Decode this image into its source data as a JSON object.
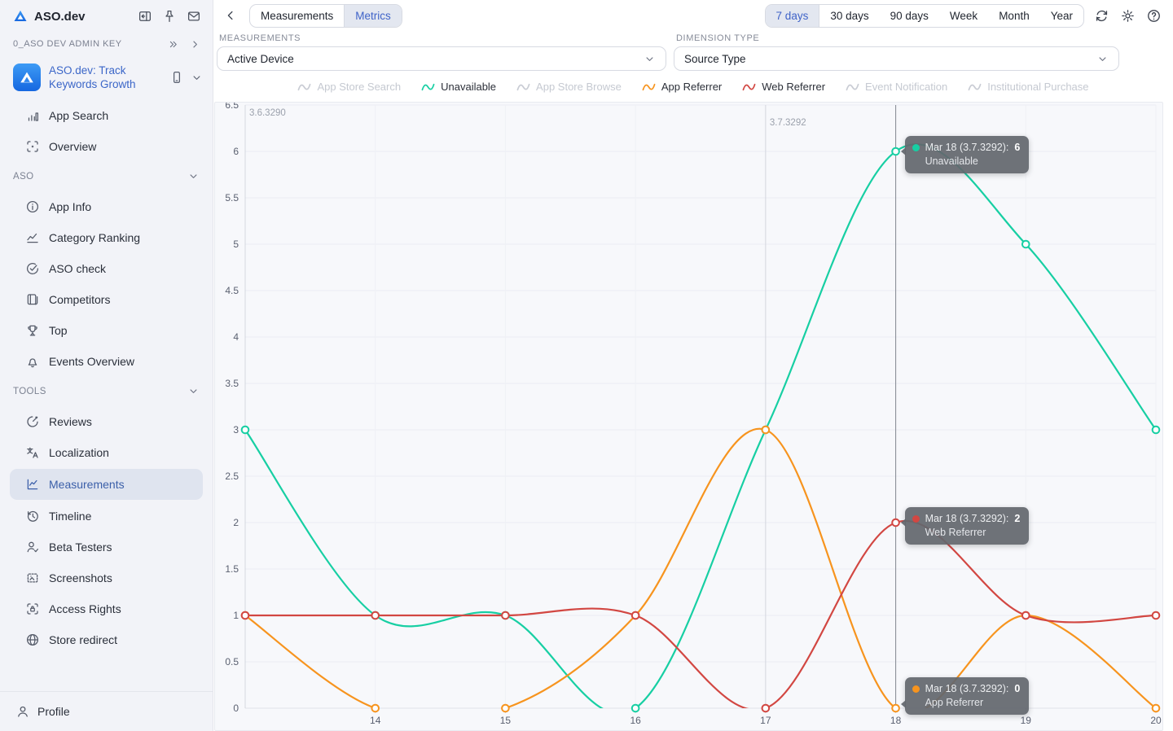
{
  "app": {
    "brand": "ASO.dev"
  },
  "sidebar": {
    "brand": "ASO.dev",
    "workspace": {
      "label": "0_ASO DEV ADMIN KEY"
    },
    "app_item": {
      "title": "ASO.dev: Track Keywords Growth"
    },
    "quick_items": [
      {
        "label": "App Search",
        "icon": "bar-chart"
      },
      {
        "label": "Overview",
        "icon": "scan"
      }
    ],
    "sections": [
      {
        "label": "ASO",
        "items": [
          {
            "label": "App Info",
            "icon": "info"
          },
          {
            "label": "Category Ranking",
            "icon": "trend"
          },
          {
            "label": "ASO check",
            "icon": "check-circle"
          },
          {
            "label": "Competitors",
            "icon": "books"
          },
          {
            "label": "Top",
            "icon": "trophy"
          },
          {
            "label": "Events Overview",
            "icon": "bell"
          }
        ]
      },
      {
        "label": "TOOLS",
        "items": [
          {
            "label": "Reviews",
            "icon": "pen"
          },
          {
            "label": "Localization",
            "icon": "translate"
          },
          {
            "label": "Measurements",
            "icon": "line-chart",
            "selected": true
          },
          {
            "label": "Timeline",
            "icon": "history"
          },
          {
            "label": "Beta Testers",
            "icon": "user-check"
          },
          {
            "label": "Screenshots",
            "icon": "screenshot"
          },
          {
            "label": "Access Rights",
            "icon": "lock-frame"
          },
          {
            "label": "Store redirect",
            "icon": "globe"
          }
        ]
      }
    ],
    "profile": {
      "label": "Profile"
    }
  },
  "topbar": {
    "tabs": [
      {
        "label": "Measurements",
        "selected": false
      },
      {
        "label": "Metrics",
        "selected": true
      }
    ],
    "ranges": [
      {
        "label": "7 days",
        "selected": true
      },
      {
        "label": "30 days",
        "selected": false
      },
      {
        "label": "90 days",
        "selected": false
      },
      {
        "label": "Week",
        "selected": false
      },
      {
        "label": "Month",
        "selected": false
      },
      {
        "label": "Year",
        "selected": false
      }
    ]
  },
  "filters": {
    "measurements": {
      "label": "MEASUREMENTS",
      "value": "Active Device"
    },
    "dimension": {
      "label": "DIMENSION TYPE",
      "value": "Source Type"
    }
  },
  "legend": [
    {
      "label": "App Store Search",
      "active": false,
      "color": "#c5c9d1"
    },
    {
      "label": "Unavailable",
      "active": true,
      "color": "#17cfa3"
    },
    {
      "label": "App Store Browse",
      "active": false,
      "color": "#c5c9d1"
    },
    {
      "label": "App Referrer",
      "active": true,
      "color": "#f7941e"
    },
    {
      "label": "Web Referrer",
      "active": true,
      "color": "#d24742"
    },
    {
      "label": "Event Notification",
      "active": false,
      "color": "#c5c9d1"
    },
    {
      "label": "Institutional Purchase",
      "active": false,
      "color": "#c5c9d1"
    }
  ],
  "chart_data": {
    "type": "line",
    "title": "",
    "x": [
      13,
      14,
      15,
      16,
      17,
      18,
      19,
      20
    ],
    "x_axis_labels": [
      "14",
      "15",
      "16",
      "17",
      "18",
      "19",
      "20"
    ],
    "ylim": [
      0,
      6.5
    ],
    "y_tick_step": 0.5,
    "grid": true,
    "smooth": true,
    "legend_position": "top",
    "series": [
      {
        "name": "Unavailable",
        "color": "#17cfa3",
        "values": [
          3,
          1,
          1,
          0,
          3,
          6,
          5,
          3
        ]
      },
      {
        "name": "App Referrer",
        "color": "#f7941e",
        "values": [
          1,
          0,
          0,
          1,
          3,
          0,
          1,
          0
        ]
      },
      {
        "name": "Web Referrer",
        "color": "#d24742",
        "values": [
          1,
          1,
          1,
          1,
          0,
          2,
          1,
          1
        ]
      }
    ],
    "annotations": [
      {
        "x": 13,
        "label": "3.6.3290"
      },
      {
        "x": 17,
        "label": "3.7.3292"
      }
    ],
    "hover": {
      "x": 18
    },
    "tooltips": [
      {
        "label": "Mar 18 (3.7.3292):",
        "value": "6",
        "series": "Unavailable",
        "color": "#17cfa3",
        "x": 18,
        "y": 6
      },
      {
        "label": "Mar 18 (3.7.3292):",
        "value": "2",
        "series": "Web Referrer",
        "color": "#d24742",
        "x": 18,
        "y": 2
      },
      {
        "label": "Mar 18 (3.7.3292):",
        "value": "0",
        "series": "App Referrer",
        "color": "#f7941e",
        "x": 18,
        "y": 0
      }
    ]
  }
}
